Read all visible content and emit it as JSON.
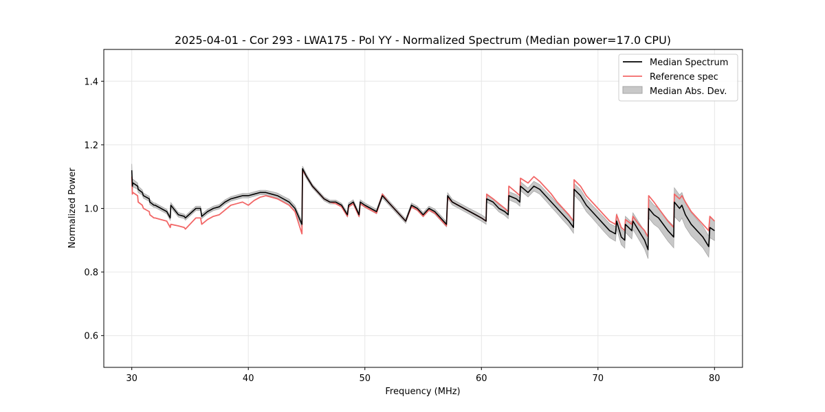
{
  "chart_data": {
    "type": "line",
    "title": "2025-04-01 - Cor 293 - LWA175 - Pol YY - Normalized Spectrum (Median power=17.0 CPU)",
    "xlabel": "Frequency (MHz)",
    "ylabel": "Normalized Power",
    "xlim": [
      27.6,
      82.4
    ],
    "ylim": [
      0.5,
      1.5
    ],
    "xticks": [
      30,
      40,
      50,
      60,
      70,
      80
    ],
    "yticks": [
      0.6,
      0.8,
      1.0,
      1.2,
      1.4
    ],
    "grid": true,
    "legend_position": "top-right",
    "colors": {
      "median": "#000000",
      "reference": "#f26666",
      "band_fill": "#c8c8c8",
      "band_edge": "#a6a6a6",
      "grid": "#e6e6e6"
    },
    "series": [
      {
        "name": "Median Spectrum",
        "x": [
          30.0,
          30.05,
          30.1,
          30.5,
          30.55,
          30.9,
          31.0,
          31.5,
          31.55,
          31.9,
          32.0,
          32.5,
          33.0,
          33.3,
          33.35,
          34.0,
          34.5,
          34.6,
          35.5,
          35.9,
          36.0,
          36.5,
          37.0,
          37.5,
          38.0,
          38.5,
          39.0,
          39.5,
          40.0,
          40.5,
          41.0,
          41.5,
          42.0,
          42.5,
          43.0,
          43.5,
          44.0,
          44.6,
          44.65,
          45.0,
          45.5,
          46.0,
          46.5,
          47.0,
          47.5,
          48.0,
          48.5,
          48.6,
          49.0,
          49.5,
          49.6,
          50.0,
          50.5,
          51.0,
          51.5,
          52.0,
          52.5,
          53.0,
          53.5,
          54.0,
          54.5,
          55.0,
          55.5,
          56.0,
          56.5,
          57.0,
          57.1,
          57.5,
          58.0,
          58.5,
          59.0,
          59.5,
          60.0,
          60.4,
          60.45,
          61.0,
          61.5,
          62.0,
          62.3,
          62.35,
          63.0,
          63.3,
          63.35,
          64.0,
          64.5,
          65.0,
          65.5,
          66.0,
          66.5,
          67.0,
          67.5,
          67.9,
          67.95,
          68.5,
          69.0,
          69.5,
          70.0,
          70.5,
          71.0,
          71.5,
          71.6,
          72.0,
          72.3,
          72.35,
          72.9,
          73.0,
          73.5,
          74.0,
          74.3,
          74.35,
          74.8,
          75.2,
          75.6,
          76.0,
          76.5,
          76.55,
          77.0,
          77.2,
          77.5,
          78.0,
          78.5,
          79.0,
          79.5,
          79.6,
          80.0
        ],
        "values": [
          1.12,
          1.07,
          1.08,
          1.07,
          1.06,
          1.05,
          1.04,
          1.03,
          1.02,
          1.01,
          1.01,
          1.0,
          0.99,
          0.97,
          1.01,
          0.98,
          0.975,
          0.97,
          1.0,
          1.0,
          0.975,
          0.99,
          1.0,
          1.005,
          1.02,
          1.03,
          1.035,
          1.04,
          1.04,
          1.045,
          1.05,
          1.05,
          1.045,
          1.04,
          1.03,
          1.02,
          1.0,
          0.95,
          1.125,
          1.1,
          1.07,
          1.05,
          1.03,
          1.02,
          1.02,
          1.01,
          0.98,
          1.01,
          1.02,
          0.98,
          1.02,
          1.01,
          1.0,
          0.99,
          1.04,
          1.02,
          1.0,
          0.98,
          0.96,
          1.01,
          1.0,
          0.98,
          1.0,
          0.99,
          0.97,
          0.95,
          1.04,
          1.02,
          1.01,
          1.0,
          0.99,
          0.98,
          0.97,
          0.96,
          1.03,
          1.02,
          1.0,
          0.99,
          0.98,
          1.04,
          1.03,
          1.02,
          1.07,
          1.05,
          1.07,
          1.06,
          1.04,
          1.02,
          1.0,
          0.98,
          0.96,
          0.94,
          1.06,
          1.04,
          1.01,
          0.99,
          0.97,
          0.95,
          0.93,
          0.92,
          0.96,
          0.91,
          0.9,
          0.95,
          0.93,
          0.96,
          0.93,
          0.9,
          0.87,
          1.0,
          0.98,
          0.97,
          0.95,
          0.93,
          0.91,
          1.02,
          1.0,
          1.01,
          0.98,
          0.95,
          0.93,
          0.91,
          0.88,
          0.94,
          0.93
        ]
      },
      {
        "name": "Reference spec",
        "x": [
          30.0,
          30.05,
          30.1,
          30.5,
          30.55,
          30.9,
          31.0,
          31.5,
          31.55,
          31.9,
          32.0,
          32.5,
          33.0,
          33.3,
          33.35,
          34.0,
          34.5,
          34.6,
          35.5,
          35.9,
          36.0,
          36.5,
          37.0,
          37.5,
          38.0,
          38.5,
          39.0,
          39.5,
          40.0,
          40.5,
          41.0,
          41.5,
          42.0,
          42.5,
          43.0,
          43.5,
          44.0,
          44.6,
          44.65,
          45.0,
          45.5,
          46.0,
          46.5,
          47.0,
          47.5,
          48.0,
          48.5,
          48.6,
          49.0,
          49.5,
          49.6,
          50.0,
          50.5,
          51.0,
          51.5,
          52.0,
          52.5,
          53.0,
          53.5,
          54.0,
          54.5,
          55.0,
          55.5,
          56.0,
          56.5,
          57.0,
          57.1,
          57.5,
          58.0,
          58.5,
          59.0,
          59.5,
          60.0,
          60.4,
          60.45,
          61.0,
          61.5,
          62.0,
          62.3,
          62.35,
          63.0,
          63.3,
          63.35,
          64.0,
          64.5,
          65.0,
          65.5,
          66.0,
          66.5,
          67.0,
          67.5,
          67.9,
          67.95,
          68.5,
          69.0,
          69.5,
          70.0,
          70.5,
          71.0,
          71.5,
          71.6,
          72.0,
          72.3,
          72.35,
          72.9,
          73.0,
          73.5,
          74.0,
          74.3,
          74.35,
          74.8,
          75.2,
          75.6,
          76.0,
          76.5,
          76.55,
          77.0,
          77.2,
          77.5,
          78.0,
          78.5,
          79.0,
          79.5,
          79.6,
          80.0
        ],
        "values": [
          1.1,
          1.045,
          1.05,
          1.04,
          1.02,
          1.01,
          1.0,
          0.99,
          0.98,
          0.97,
          0.97,
          0.965,
          0.96,
          0.94,
          0.95,
          0.945,
          0.94,
          0.935,
          0.97,
          0.97,
          0.95,
          0.965,
          0.975,
          0.98,
          0.995,
          1.01,
          1.015,
          1.02,
          1.01,
          1.025,
          1.035,
          1.04,
          1.035,
          1.03,
          1.02,
          1.01,
          0.99,
          0.92,
          1.12,
          1.1,
          1.07,
          1.05,
          1.03,
          1.02,
          1.015,
          1.005,
          0.975,
          1.005,
          1.015,
          0.975,
          1.015,
          1.005,
          0.995,
          0.985,
          1.045,
          1.02,
          1.0,
          0.98,
          0.96,
          1.005,
          0.995,
          0.975,
          0.995,
          0.985,
          0.965,
          0.945,
          1.035,
          1.02,
          1.01,
          1.0,
          0.99,
          0.98,
          0.97,
          0.96,
          1.045,
          1.03,
          1.015,
          1.0,
          0.99,
          1.07,
          1.05,
          1.04,
          1.095,
          1.08,
          1.1,
          1.085,
          1.065,
          1.045,
          1.02,
          1.0,
          0.98,
          0.96,
          1.09,
          1.07,
          1.04,
          1.02,
          1.0,
          0.98,
          0.96,
          0.95,
          0.98,
          0.94,
          0.93,
          0.965,
          0.95,
          0.975,
          0.95,
          0.93,
          0.91,
          1.04,
          1.02,
          1.0,
          0.98,
          0.96,
          0.94,
          1.045,
          1.03,
          1.04,
          1.02,
          0.99,
          0.97,
          0.95,
          0.93,
          0.975,
          0.96
        ]
      }
    ],
    "band": {
      "name": "Median Abs. Dev.",
      "x": [
        30.0,
        30.05,
        30.1,
        30.5,
        30.55,
        30.9,
        31.0,
        31.5,
        31.55,
        31.9,
        32.0,
        32.5,
        33.0,
        33.3,
        33.35,
        34.0,
        34.5,
        34.6,
        35.5,
        35.9,
        36.0,
        36.5,
        37.0,
        37.5,
        38.0,
        38.5,
        39.0,
        39.5,
        40.0,
        40.5,
        41.0,
        41.5,
        42.0,
        42.5,
        43.0,
        43.5,
        44.0,
        44.6,
        44.65,
        45.0,
        45.5,
        46.0,
        46.5,
        47.0,
        47.5,
        48.0,
        48.5,
        48.6,
        49.0,
        49.5,
        49.6,
        50.0,
        50.5,
        51.0,
        51.5,
        52.0,
        52.5,
        53.0,
        53.5,
        54.0,
        54.5,
        55.0,
        55.5,
        56.0,
        56.5,
        57.0,
        57.1,
        57.5,
        58.0,
        58.5,
        59.0,
        59.5,
        60.0,
        60.4,
        60.45,
        61.0,
        61.5,
        62.0,
        62.3,
        62.35,
        63.0,
        63.3,
        63.35,
        64.0,
        64.5,
        65.0,
        65.5,
        66.0,
        66.5,
        67.0,
        67.5,
        67.9,
        67.95,
        68.5,
        69.0,
        69.5,
        70.0,
        70.5,
        71.0,
        71.5,
        71.6,
        72.0,
        72.3,
        72.35,
        72.9,
        73.0,
        73.5,
        74.0,
        74.3,
        74.35,
        74.8,
        75.2,
        75.6,
        76.0,
        76.5,
        76.55,
        77.0,
        77.2,
        77.5,
        78.0,
        78.5,
        79.0,
        79.5,
        79.6,
        80.0
      ],
      "dev": [
        0.02,
        0.015,
        0.012,
        0.01,
        0.01,
        0.008,
        0.008,
        0.008,
        0.008,
        0.007,
        0.007,
        0.007,
        0.007,
        0.007,
        0.008,
        0.007,
        0.007,
        0.007,
        0.007,
        0.007,
        0.007,
        0.007,
        0.007,
        0.007,
        0.007,
        0.007,
        0.007,
        0.007,
        0.007,
        0.007,
        0.007,
        0.007,
        0.008,
        0.008,
        0.008,
        0.009,
        0.009,
        0.01,
        0.008,
        0.007,
        0.006,
        0.006,
        0.006,
        0.006,
        0.006,
        0.006,
        0.007,
        0.007,
        0.007,
        0.007,
        0.007,
        0.007,
        0.007,
        0.007,
        0.007,
        0.007,
        0.007,
        0.007,
        0.007,
        0.007,
        0.007,
        0.007,
        0.007,
        0.008,
        0.008,
        0.008,
        0.009,
        0.009,
        0.009,
        0.009,
        0.009,
        0.01,
        0.01,
        0.01,
        0.011,
        0.011,
        0.011,
        0.012,
        0.012,
        0.013,
        0.013,
        0.013,
        0.014,
        0.014,
        0.015,
        0.015,
        0.015,
        0.016,
        0.016,
        0.017,
        0.017,
        0.018,
        0.018,
        0.019,
        0.02,
        0.02,
        0.021,
        0.022,
        0.022,
        0.023,
        0.024,
        0.024,
        0.025,
        0.025,
        0.026,
        0.026,
        0.027,
        0.028,
        0.028,
        0.03,
        0.03,
        0.031,
        0.032,
        0.033,
        0.034,
        0.045,
        0.042,
        0.04,
        0.038,
        0.036,
        0.035,
        0.034,
        0.033,
        0.032,
        0.031
      ]
    }
  }
}
